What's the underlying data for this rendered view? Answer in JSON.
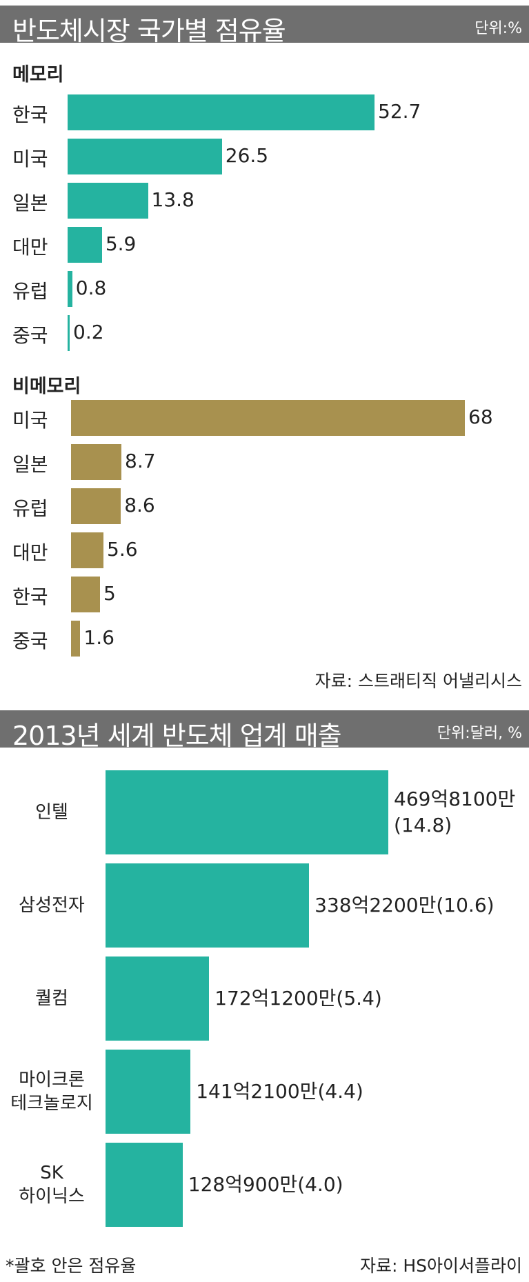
{
  "colors": {
    "header_bg": "#6f6f6f",
    "memory_bar": "#25b3a0",
    "nonmemory_bar": "#a8914f",
    "sales_bar": "#25b3a0"
  },
  "market_header": {
    "title": "반도체시장 국가별 점유율",
    "unit": "단위:%"
  },
  "market_source": "자료: 스트래티직 어낼리시스",
  "sales_header": {
    "title": "2013년 세계 반도체 업계 매출",
    "unit": "단위:달러, %"
  },
  "sales_footnote": "*괄호 안은 점유율",
  "sales_source": "자료: HS아이서플라이",
  "chart_data": [
    {
      "type": "bar",
      "title": "메모리",
      "categories": [
        "한국",
        "미국",
        "일본",
        "대만",
        "유럽",
        "중국"
      ],
      "values": [
        52.7,
        26.5,
        13.8,
        5.9,
        0.8,
        0.2
      ],
      "labels": [
        "52.7",
        "26.5",
        "13.8",
        "5.9",
        "0.8",
        "0.2"
      ],
      "orientation": "horizontal"
    },
    {
      "type": "bar",
      "title": "비메모리",
      "categories": [
        "미국",
        "일본",
        "유럽",
        "대만",
        "한국",
        "중국"
      ],
      "values": [
        68,
        8.7,
        8.6,
        5.6,
        5,
        1.6
      ],
      "labels": [
        "68",
        "8.7",
        "8.6",
        "5.6",
        "5",
        "1.6"
      ],
      "orientation": "horizontal"
    },
    {
      "type": "bar",
      "orientation": "horizontal",
      "categories": [
        [
          "인텔"
        ],
        [
          "삼성전자"
        ],
        [
          "퀄컴"
        ],
        [
          "마이크론",
          "테크놀로지"
        ],
        [
          "SK",
          "하이닉스"
        ]
      ],
      "values": [
        46981,
        33822,
        17212,
        14121,
        12809
      ],
      "value_unit": "백만달러",
      "shares": [
        14.8,
        10.6,
        5.4,
        4.4,
        4.0
      ],
      "labels": [
        [
          "469억8100만",
          "(14.8)"
        ],
        [
          "338억2200만(10.6)"
        ],
        [
          "172억1200만(5.4)"
        ],
        [
          "141억2100만(4.4)"
        ],
        [
          "128억900만(4.0)"
        ]
      ]
    }
  ]
}
